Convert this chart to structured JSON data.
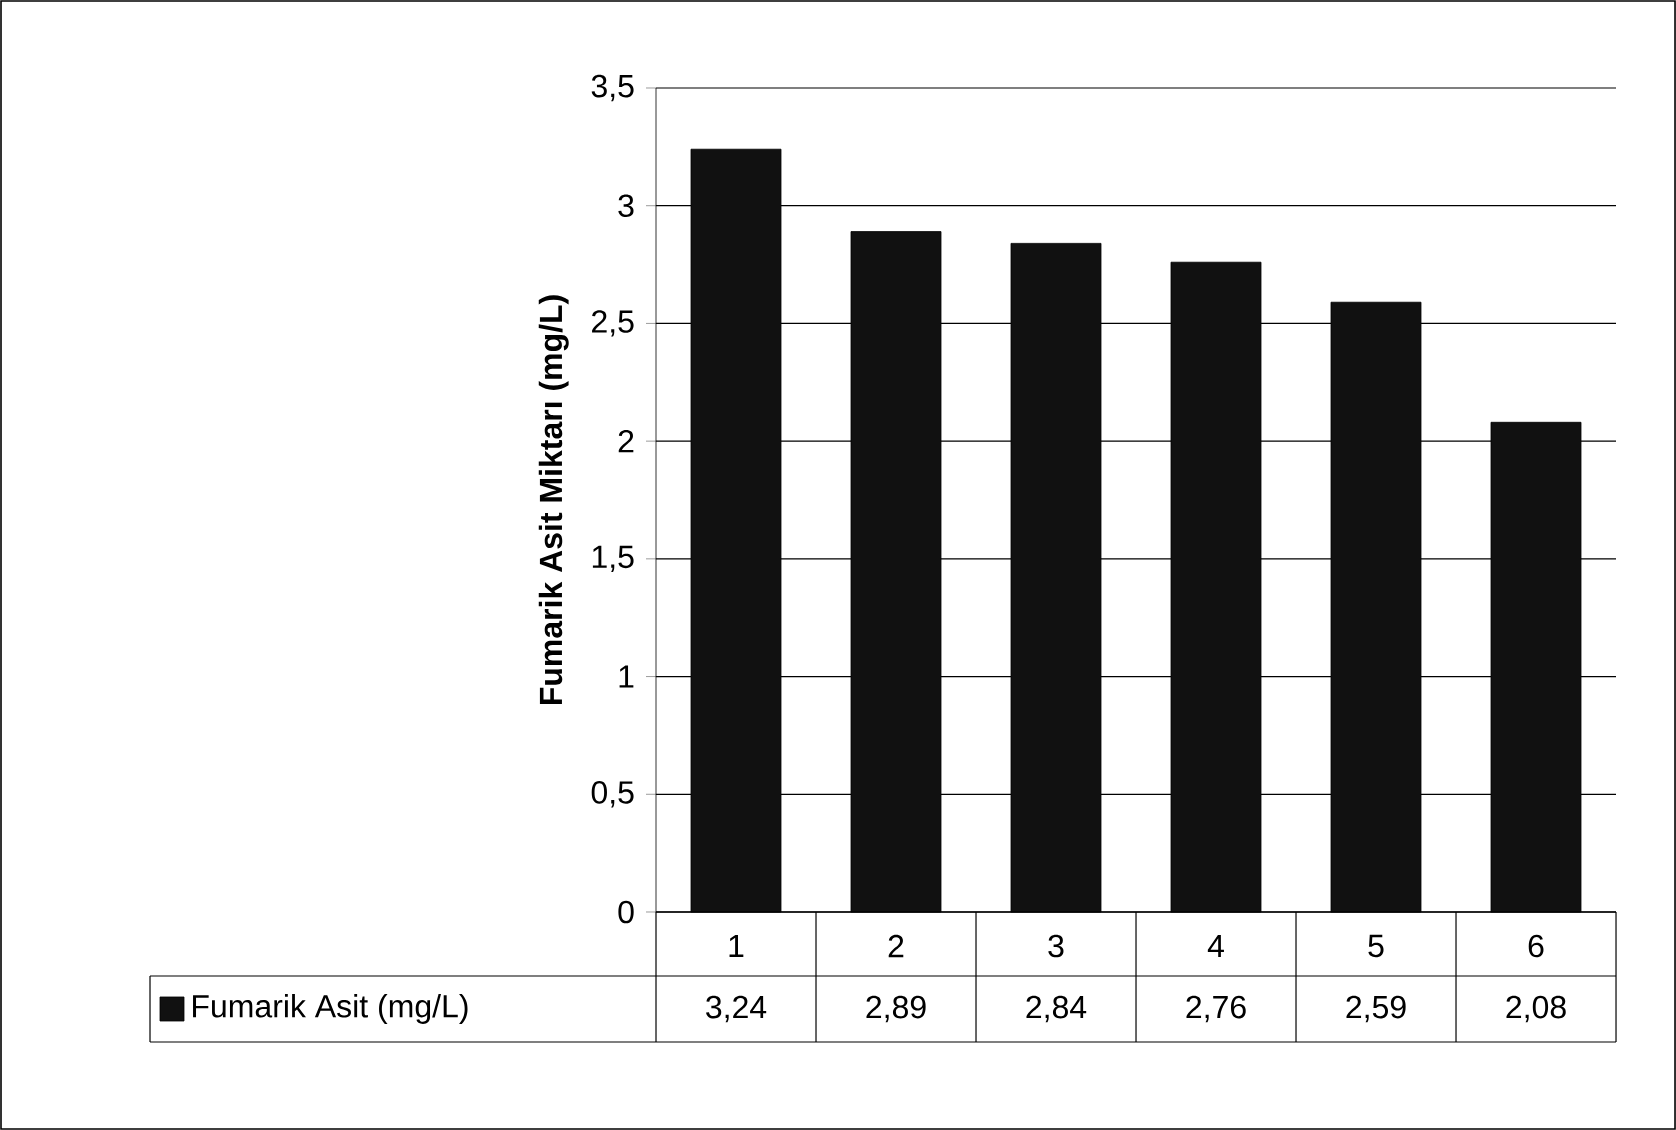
{
  "chart_data": {
    "type": "bar",
    "ylabel": "Fumarik Asit Miktarı (mg/L)",
    "categories": [
      "1",
      "2",
      "3",
      "4",
      "5",
      "6"
    ],
    "series": [
      {
        "name": "Fumarik Asit (mg/L)",
        "color": "#111111",
        "values": [
          3.24,
          2.89,
          2.84,
          2.76,
          2.59,
          2.08
        ]
      }
    ],
    "value_labels": [
      "3,24",
      "2,89",
      "2,84",
      "2,76",
      "2,59",
      "2,08"
    ],
    "ylim": [
      0,
      3.5
    ],
    "yticks": [
      0,
      {
        "value": 0.5,
        "label": "0,5"
      },
      1,
      {
        "value": 1.5,
        "label": "1,5"
      },
      2,
      {
        "value": 2.5,
        "label": "2,5"
      },
      3,
      {
        "value": 3.5,
        "label": "3,5"
      }
    ],
    "grid": "y",
    "legend": "bottom"
  }
}
